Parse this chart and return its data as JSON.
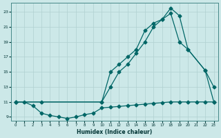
{
  "xlabel": "Humidex (Indice chaleur)",
  "bg_color": "#cce8e8",
  "grid_color": "#b0d0d0",
  "line_color": "#006666",
  "xlim": [
    -0.5,
    23.5
  ],
  "ylim": [
    8.5,
    24.2
  ],
  "xticks": [
    0,
    1,
    2,
    3,
    4,
    5,
    6,
    7,
    8,
    9,
    10,
    11,
    12,
    13,
    14,
    15,
    16,
    17,
    18,
    19,
    20,
    21,
    22,
    23
  ],
  "yticks": [
    9,
    11,
    13,
    15,
    17,
    19,
    21,
    23
  ],
  "line1_x": [
    0,
    1,
    2,
    3,
    4,
    5,
    6,
    7,
    8,
    9,
    10,
    11,
    12,
    13,
    14,
    15,
    16,
    17,
    18,
    19,
    20,
    21,
    22,
    23
  ],
  "line1_y": [
    11,
    11,
    10.5,
    9.5,
    9.2,
    9.0,
    8.8,
    9.0,
    9.3,
    9.5,
    10.2,
    10.3,
    10.4,
    10.5,
    10.6,
    10.7,
    10.8,
    10.9,
    11.0,
    11.0,
    11.0,
    11.0,
    11.0,
    11.0
  ],
  "line2_x": [
    0,
    3,
    10,
    11,
    12,
    13,
    14,
    15,
    16,
    17,
    18,
    19,
    20,
    22,
    23
  ],
  "line2_y": [
    11,
    11,
    11,
    15,
    16,
    17,
    18,
    20.5,
    21.5,
    22,
    23.5,
    22.5,
    18.0,
    15.2,
    13.0
  ],
  "line3_x": [
    0,
    10,
    11,
    12,
    13,
    14,
    15,
    16,
    17,
    18,
    19,
    20,
    22,
    23
  ],
  "line3_y": [
    11,
    11,
    13.0,
    15.0,
    16.0,
    17.5,
    19.0,
    21.0,
    22.0,
    22.8,
    19.0,
    18.0,
    15.2,
    11.0
  ]
}
